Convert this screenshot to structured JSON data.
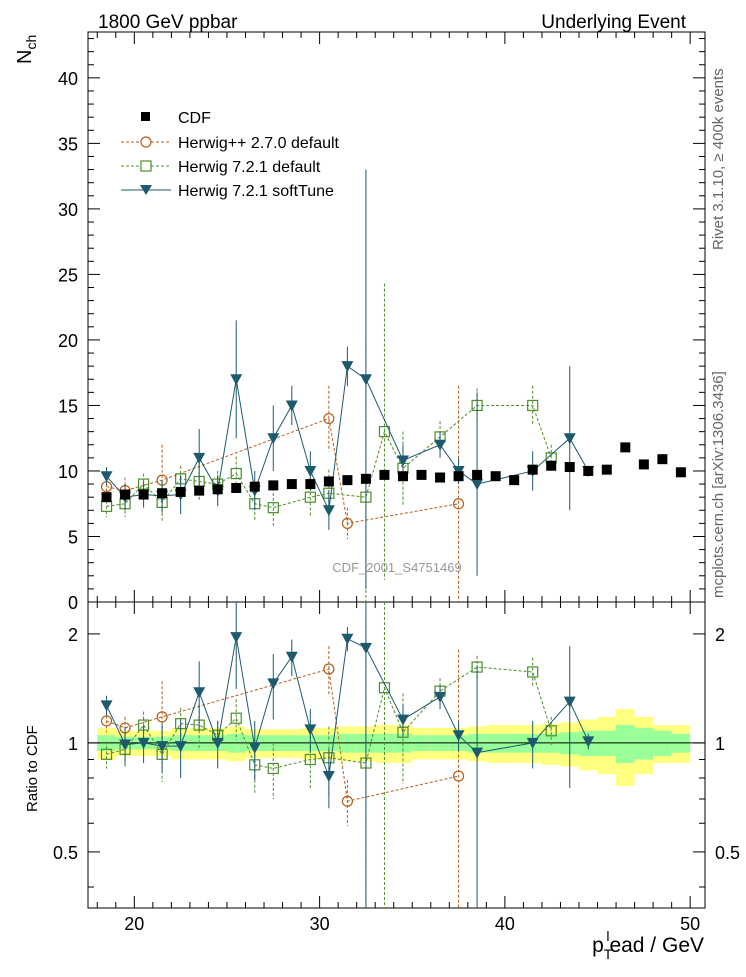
{
  "header": {
    "left_title": "1800 GeV ppbar",
    "right_title": "Underlying Event",
    "side_label_top": "Rivet 3.1.10, ≥ 400k events",
    "side_label_bottom": "mcplots.cern.ch [arXiv:1306.3436]",
    "watermark": "CDF_2001_S4751469"
  },
  "legend": {
    "position": "top-left",
    "items": [
      {
        "label": "CDF",
        "marker": "filled-square",
        "color": "#000000"
      },
      {
        "label": "Herwig++ 2.7.0 default",
        "marker": "open-circle",
        "color": "#b55f1c"
      },
      {
        "label": "Herwig 7.2.1 default",
        "marker": "open-square",
        "color": "#4b8f2a"
      },
      {
        "label": "Herwig 7.2.1 softTune",
        "marker": "filled-triangle-down",
        "color": "#1e5a6e"
      }
    ]
  },
  "chart_data": [
    {
      "type": "scatter",
      "panel": "main",
      "ylabel": "N_ch",
      "ylabel_main": "N",
      "ylabel_sub": "ch",
      "xlim": [
        17.5,
        50.8
      ],
      "ylim": [
        0,
        43.5
      ],
      "yticks": [
        0,
        5,
        10,
        15,
        20,
        25,
        30,
        35,
        40
      ],
      "series": [
        {
          "name": "CDF",
          "color": "#000000",
          "x": [
            18.5,
            19.5,
            20.5,
            21.5,
            22.5,
            23.5,
            24.5,
            25.5,
            26.5,
            27.5,
            28.5,
            29.5,
            30.5,
            31.5,
            32.5,
            33.5,
            34.5,
            35.5,
            36.5,
            37.5,
            38.5,
            39.5,
            40.5,
            41.5,
            42.5,
            43.5,
            44.5,
            45.5,
            46.5,
            47.5,
            48.5,
            49.5
          ],
          "y": [
            8.0,
            8.2,
            8.2,
            8.3,
            8.4,
            8.5,
            8.6,
            8.7,
            8.8,
            8.9,
            9.0,
            9.0,
            9.2,
            9.3,
            9.4,
            9.7,
            9.6,
            9.7,
            9.5,
            9.6,
            9.7,
            9.6,
            9.3,
            10.1,
            10.4,
            10.3,
            10.0,
            10.1,
            11.8,
            10.5,
            10.9,
            9.9
          ]
        },
        {
          "name": "Herwig++ 2.7.0 default",
          "color": "#b55f1c",
          "x": [
            18.5,
            19.5,
            21.5,
            30.5,
            31.5,
            37.5
          ],
          "y": [
            8.8,
            8.5,
            9.3,
            14.0,
            6.0,
            7.5
          ],
          "err": [
            1.0,
            1.0,
            2.7,
            2.5,
            1.2,
            9.0
          ]
        },
        {
          "name": "Herwig 7.2.1 default",
          "color": "#4b8f2a",
          "x": [
            18.5,
            19.5,
            20.5,
            21.5,
            22.5,
            23.5,
            24.5,
            25.5,
            26.5,
            27.5,
            29.5,
            30.5,
            32.5,
            33.5,
            34.5,
            36.5,
            38.5,
            41.5,
            42.5
          ],
          "y": [
            7.3,
            7.5,
            9.0,
            7.6,
            9.4,
            9.2,
            9.0,
            9.8,
            7.5,
            7.2,
            8.0,
            8.3,
            8.0,
            13.0,
            10.2,
            12.6,
            15.0,
            15.0,
            11.0
          ],
          "err": [
            0.8,
            1.0,
            0.8,
            1.5,
            1.0,
            1.5,
            1.0,
            1.3,
            1.3,
            1.5,
            1.5,
            1.8,
            12.0,
            11.3,
            2.8,
            1.2,
            1.3,
            1.5,
            1.0
          ]
        },
        {
          "name": "Herwig 7.2.1 softTune",
          "color": "#1e5a6e",
          "x": [
            18.5,
            19.5,
            20.5,
            21.5,
            22.5,
            23.5,
            24.5,
            25.5,
            26.5,
            27.5,
            28.5,
            29.5,
            30.5,
            31.5,
            32.5,
            34.5,
            36.5,
            37.5,
            38.5,
            41.5,
            43.5,
            44.5
          ],
          "y": [
            9.6,
            8.0,
            8.2,
            8.1,
            8.2,
            11.0,
            8.5,
            17.0,
            8.5,
            12.5,
            15.0,
            10.0,
            7.0,
            18.0,
            17.0,
            10.8,
            12.0,
            10.0,
            9.0,
            10.0,
            12.5,
            10.0
          ],
          "err": [
            0.7,
            1.0,
            1.0,
            1.2,
            1.5,
            2.2,
            1.2,
            4.5,
            1.5,
            2.5,
            1.5,
            1.5,
            1.5,
            1.5,
            16.0,
            1.2,
            1.0,
            1.0,
            7.0,
            1.5,
            5.5,
            0.4
          ]
        }
      ]
    },
    {
      "type": "scatter",
      "panel": "ratio",
      "ylabel": "Ratio to CDF",
      "xlabel": "p_T^lead / GeV",
      "xlabel_main": "p",
      "xlabel_sub": "T",
      "xlabel_sup": "l",
      "xlabel_rest": "ead / GeV",
      "xlim": [
        17.5,
        50.8
      ],
      "ylim": [
        0.35,
        2.45
      ],
      "log_y": true,
      "yticks": [
        0.5,
        1,
        2
      ],
      "xticks": [
        20,
        30,
        40,
        50
      ],
      "band_1sigma_halfwidth": [
        0.05,
        0.04,
        0.04,
        0.04,
        0.05,
        0.05,
        0.05,
        0.06,
        0.05,
        0.05,
        0.05,
        0.05,
        0.05,
        0.06,
        0.06,
        0.06,
        0.06,
        0.05,
        0.05,
        0.05,
        0.06,
        0.06,
        0.06,
        0.06,
        0.06,
        0.07,
        0.08,
        0.08,
        0.12,
        0.1,
        0.08,
        0.06
      ],
      "band_total_halfwidth": [
        0.1,
        0.08,
        0.08,
        0.08,
        0.1,
        0.1,
        0.1,
        0.11,
        0.09,
        0.09,
        0.09,
        0.1,
        0.1,
        0.11,
        0.11,
        0.12,
        0.12,
        0.1,
        0.1,
        0.1,
        0.11,
        0.12,
        0.12,
        0.12,
        0.13,
        0.14,
        0.16,
        0.18,
        0.24,
        0.18,
        0.12,
        0.12
      ],
      "series": [
        {
          "name": "Herwig++ 2.7.0 default",
          "color": "#b55f1c",
          "x": [
            18.5,
            19.5,
            21.5,
            30.5,
            31.5,
            37.5
          ],
          "y": [
            1.15,
            1.1,
            1.18,
            1.6,
            0.69,
            0.81
          ],
          "err": [
            0.08,
            0.08,
            0.3,
            0.25,
            0.1,
            1.0
          ]
        },
        {
          "name": "Herwig 7.2.1 default",
          "color": "#4b8f2a",
          "x": [
            18.5,
            19.5,
            20.5,
            21.5,
            22.5,
            23.5,
            24.5,
            25.5,
            26.5,
            27.5,
            29.5,
            30.5,
            32.5,
            33.5,
            34.5,
            36.5,
            38.5,
            41.5,
            42.5
          ],
          "y": [
            0.93,
            0.96,
            1.12,
            0.93,
            1.13,
            1.12,
            1.05,
            1.17,
            0.87,
            0.85,
            0.9,
            0.91,
            0.88,
            1.42,
            1.07,
            1.39,
            1.62,
            1.57,
            1.08
          ],
          "err": [
            0.08,
            0.1,
            0.1,
            0.15,
            0.12,
            0.15,
            0.1,
            0.15,
            0.15,
            0.15,
            0.15,
            0.2,
            1.3,
            1.2,
            0.3,
            0.12,
            0.12,
            0.15,
            0.1
          ]
        },
        {
          "name": "Herwig 7.2.1 softTune",
          "color": "#1e5a6e",
          "x": [
            18.5,
            19.5,
            20.5,
            21.5,
            22.5,
            23.5,
            24.5,
            25.5,
            26.5,
            27.5,
            28.5,
            29.5,
            30.5,
            31.5,
            32.5,
            34.5,
            36.5,
            37.5,
            38.5,
            41.5,
            43.5,
            44.5
          ],
          "y": [
            1.27,
            0.99,
            1.0,
            0.98,
            0.98,
            1.38,
            1.0,
            1.96,
            0.97,
            1.46,
            1.73,
            1.09,
            0.81,
            1.94,
            1.83,
            1.16,
            1.34,
            1.05,
            0.94,
            1.0,
            1.3,
            1.01
          ],
          "err": [
            0.08,
            0.12,
            0.12,
            0.15,
            0.18,
            0.3,
            0.15,
            0.55,
            0.18,
            0.3,
            0.2,
            0.15,
            0.15,
            0.15,
            1.7,
            0.12,
            0.1,
            0.1,
            0.7,
            0.15,
            0.55,
            0.05
          ]
        }
      ]
    }
  ]
}
